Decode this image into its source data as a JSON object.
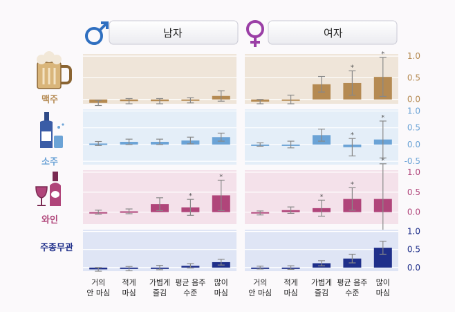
{
  "headers": {
    "male": "남자",
    "female": "여자"
  },
  "chart_data": {
    "type": "bar",
    "categories": [
      [
        "거의",
        "안 마심"
      ],
      [
        "적게",
        "마심"
      ],
      [
        "가볍게",
        "즐김"
      ],
      [
        "평균 음주",
        "수준"
      ],
      [
        "많이",
        "마심"
      ]
    ],
    "columns": [
      "남자",
      "여자"
    ],
    "rows": [
      {
        "label": "맥주",
        "icon": "beer-mug-icon",
        "color": "#b58a52",
        "tint": "#efe5d9",
        "ylim": [
          -0.1,
          1.05
        ],
        "ticks": [
          "1.0",
          "0.5",
          "0.0"
        ],
        "tick_values": [
          1.0,
          0.5,
          0.0
        ],
        "male": {
          "values": [
            -0.08,
            -0.04,
            -0.04,
            -0.02,
            0.08
          ],
          "err": [
            0.06,
            0.06,
            0.06,
            0.06,
            0.12
          ],
          "sig": [
            false,
            false,
            false,
            false,
            false
          ]
        },
        "female": {
          "values": [
            -0.05,
            0.0,
            0.35,
            0.38,
            0.52
          ],
          "err": [
            0.05,
            0.1,
            0.18,
            0.28,
            0.45
          ],
          "sig": [
            false,
            false,
            false,
            true,
            true
          ]
        }
      },
      {
        "label": "소주",
        "icon": "soju-bottle-icon",
        "color": "#6ba3d6",
        "tint": "#e4eef8",
        "ylim": [
          -0.6,
          1.05
        ],
        "ticks": [
          "1.0",
          "0.5",
          "0.0",
          "-0.5"
        ],
        "tick_values": [
          1.0,
          0.5,
          0.0,
          -0.5
        ],
        "male": {
          "values": [
            0.03,
            0.08,
            0.08,
            0.12,
            0.22
          ],
          "err": [
            0.06,
            0.08,
            0.08,
            0.1,
            0.12
          ],
          "sig": [
            false,
            false,
            false,
            false,
            false
          ]
        },
        "female": {
          "values": [
            0.0,
            0.0,
            0.28,
            -0.08,
            0.15
          ],
          "err": [
            0.05,
            0.1,
            0.18,
            0.26,
            0.55
          ],
          "sig": [
            false,
            false,
            false,
            true,
            true
          ]
        }
      },
      {
        "label": "와인",
        "icon": "wine-glass-bottle-icon",
        "color": "#b0457a",
        "tint": "#f4e1ea",
        "ylim": [
          -0.3,
          1.05
        ],
        "ticks": [
          "1.0",
          "0.5",
          "0.0"
        ],
        "tick_values": [
          1.0,
          0.5,
          0.0
        ],
        "male": {
          "values": [
            0.0,
            0.02,
            0.2,
            0.12,
            0.42
          ],
          "err": [
            0.05,
            0.06,
            0.16,
            0.2,
            0.38
          ],
          "sig": [
            false,
            false,
            false,
            true,
            true
          ]
        },
        "female": {
          "values": [
            -0.02,
            0.05,
            0.1,
            0.33,
            0.33
          ],
          "err": [
            0.05,
            0.08,
            0.2,
            0.28,
            0.88
          ],
          "sig": [
            false,
            false,
            true,
            true,
            true
          ]
        }
      },
      {
        "label": "주종무관",
        "icon": "",
        "color": "#1f2f8a",
        "tint": "#dfe5f5",
        "ylim": [
          -0.1,
          1.05
        ],
        "ticks": [
          "1.0",
          "0.5",
          "0.0"
        ],
        "tick_values": [
          1.0,
          0.5,
          0.0
        ],
        "male": {
          "values": [
            -0.05,
            -0.03,
            0.0,
            0.05,
            0.15
          ],
          "err": [
            0.05,
            0.06,
            0.06,
            0.06,
            0.08
          ],
          "sig": [
            false,
            false,
            false,
            false,
            false
          ]
        },
        "female": {
          "values": [
            0.0,
            0.0,
            0.12,
            0.25,
            0.55
          ],
          "err": [
            0.04,
            0.05,
            0.07,
            0.12,
            0.18
          ],
          "sig": [
            false,
            false,
            false,
            false,
            false
          ]
        }
      }
    ],
    "sig_marker": "*",
    "grid": true
  }
}
